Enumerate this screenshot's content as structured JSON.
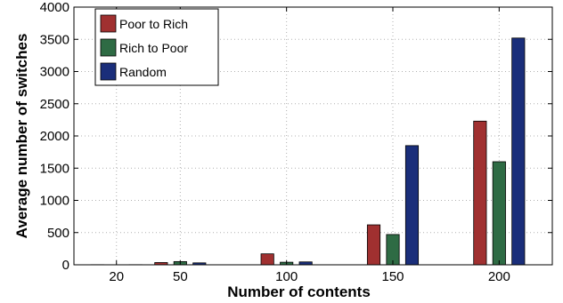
{
  "chart_data": {
    "type": "bar",
    "xlabel": "Number of contents",
    "ylabel": "Average number of switches",
    "x_ticks": [
      "20",
      "50",
      "100",
      "150",
      "200"
    ],
    "x_tick_values": [
      20,
      50,
      100,
      150,
      200
    ],
    "xlim": [
      0,
      225
    ],
    "ylim": [
      0,
      4000
    ],
    "y_ticks": [
      "0",
      "500",
      "1000",
      "1500",
      "2000",
      "2500",
      "3000",
      "3500",
      "4000"
    ],
    "y_tick_values": [
      0,
      500,
      1000,
      1500,
      2000,
      2500,
      3000,
      3500,
      4000
    ],
    "grid": true,
    "legend_position": "top-left",
    "x": [
      20,
      50,
      100,
      150,
      200
    ],
    "series": [
      {
        "name": "Poor to Rich",
        "color": "#a03030",
        "values": [
          2,
          35,
          170,
          620,
          2230
        ]
      },
      {
        "name": "Rich to Poor",
        "color": "#2e6b44",
        "values": [
          1,
          50,
          40,
          470,
          1600
        ]
      },
      {
        "name": "Random",
        "color": "#1a2e7a",
        "values": [
          2,
          30,
          45,
          1850,
          3520
        ]
      }
    ]
  }
}
